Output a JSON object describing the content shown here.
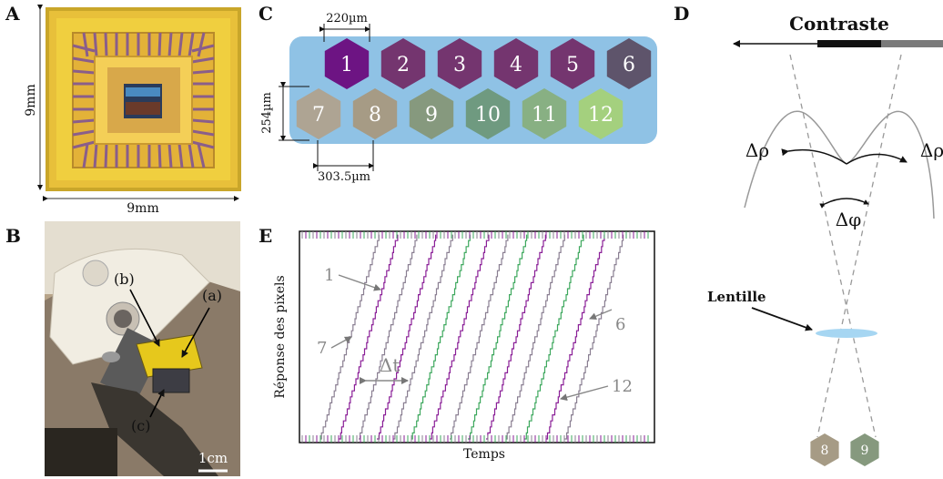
{
  "panel_letters": {
    "a": "A",
    "b": "B",
    "c": "C",
    "d": "D",
    "e": "E"
  },
  "panel_a": {
    "width_label": "9mm",
    "height_label": "9mm"
  },
  "panel_b": {
    "label_a": "(a)",
    "label_b": "(b)",
    "label_c": "(c)",
    "scale_label": "1cm"
  },
  "panel_c": {
    "width_label": "220µm",
    "height_label": "254µm",
    "pitch_label": "303.5µm",
    "row1": [
      {
        "num": "1",
        "color": "#6d1483"
      },
      {
        "num": "2",
        "color": "#74356f"
      },
      {
        "num": "3",
        "color": "#74356f"
      },
      {
        "num": "4",
        "color": "#74356f"
      },
      {
        "num": "5",
        "color": "#74356f"
      },
      {
        "num": "6",
        "color": "#5e546b"
      }
    ],
    "row2": [
      {
        "num": "7",
        "color": "#aea493"
      },
      {
        "num": "8",
        "color": "#a69b85"
      },
      {
        "num": "9",
        "color": "#86997e"
      },
      {
        "num": "10",
        "color": "#6f9a80"
      },
      {
        "num": "11",
        "color": "#88b083"
      },
      {
        "num": "12",
        "color": "#a4d07e"
      }
    ],
    "background_color": "#8fc2e5"
  },
  "panel_d": {
    "title": "Contraste",
    "rho_label": "Δρ",
    "phi_label": "Δφ",
    "lens_label": "Lentille",
    "pixel_left": "8",
    "pixel_right": "9"
  },
  "panel_e": {
    "ylabel": "Réponse des pixels",
    "xlabel": "Temps",
    "label_1": "1",
    "label_7": "7",
    "label_6": "6",
    "label_12": "12",
    "dt_label": "Δt"
  }
}
